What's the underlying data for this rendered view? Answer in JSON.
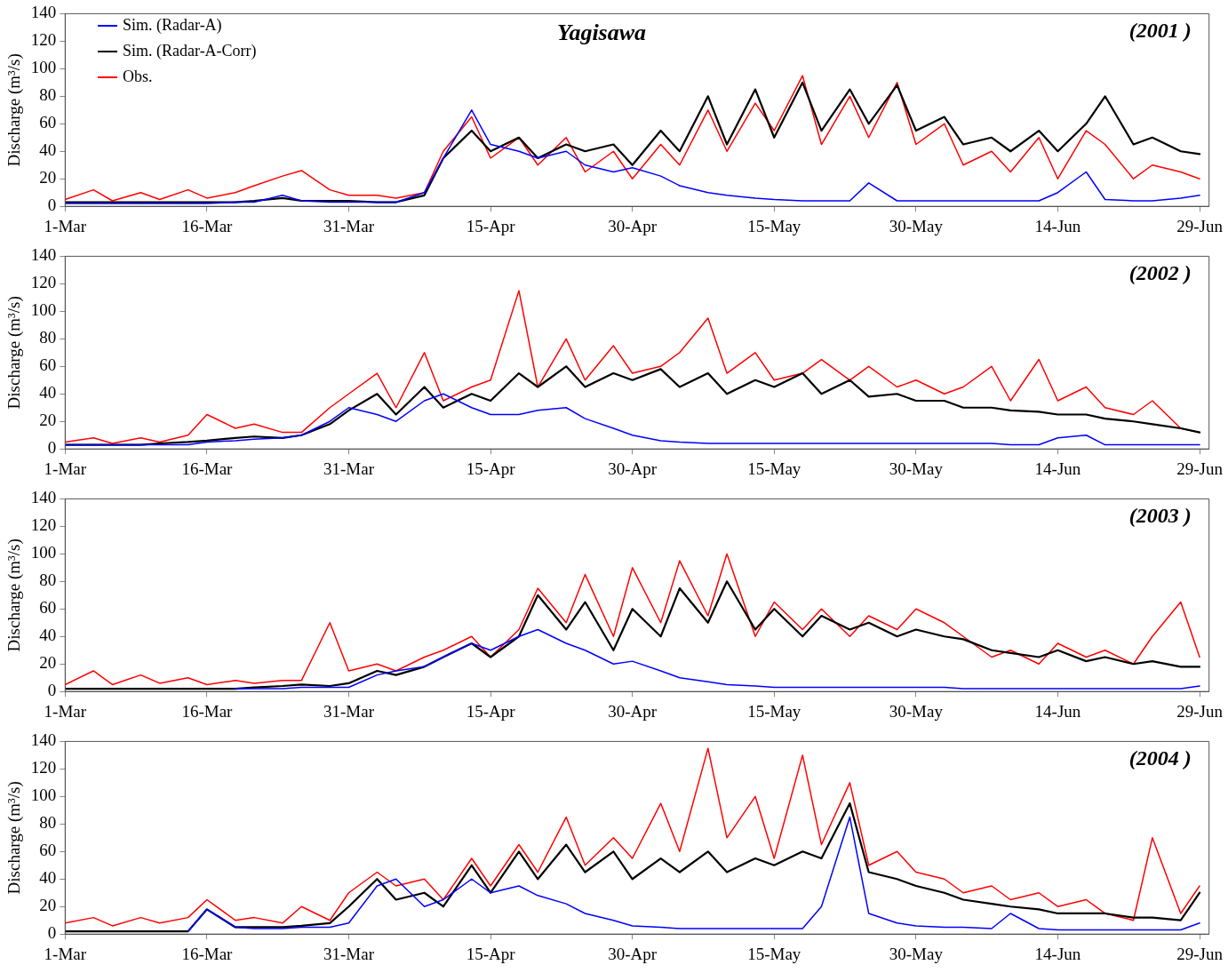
{
  "chart_data": [
    {
      "type": "line",
      "title": "Yagisawa",
      "annotations": [
        "(2001 )"
      ],
      "ylabel": "Discharge (m³/s)",
      "legend": "top left",
      "marker": "none",
      "x": [
        "--03-01",
        "--03-04",
        "--03-06",
        "--03-09",
        "--03-11",
        "--03-14",
        "--03-16",
        "--03-19",
        "--03-21",
        "--03-24",
        "--03-26",
        "--03-29",
        "--03-31",
        "--04-03",
        "--04-05",
        "--04-08",
        "--04-10",
        "--04-13",
        "--04-15",
        "--04-18",
        "--04-20",
        "--04-23",
        "--04-25",
        "--04-28",
        "--04-30",
        "--05-03",
        "--05-05",
        "--05-08",
        "--05-10",
        "--05-13",
        "--05-15",
        "--05-18",
        "--05-20",
        "--05-23",
        "--05-25",
        "--05-28",
        "--05-30",
        "--06-02",
        "--06-04",
        "--06-07",
        "--06-09",
        "--06-12",
        "--06-14",
        "--06-17",
        "--06-19",
        "--06-22",
        "--06-24",
        "--06-27",
        "--06-29"
      ],
      "xlim": [
        "--03-01",
        "--06-30"
      ],
      "xticks": [
        {
          "value": "--03-01",
          "label": "1-Mar"
        },
        {
          "value": "--03-16",
          "label": "16-Mar"
        },
        {
          "value": "--03-31",
          "label": "31-Mar"
        },
        {
          "value": "--04-15",
          "label": "15-Apr"
        },
        {
          "value": "--04-30",
          "label": "30-Apr"
        },
        {
          "value": "--05-15",
          "label": "15-May"
        },
        {
          "value": "--05-30",
          "label": "30-May"
        },
        {
          "value": "--06-14",
          "label": "14-Jun"
        },
        {
          "value": "--06-29",
          "label": "29-Jun"
        }
      ],
      "ylim": [
        0,
        140
      ],
      "yticks": [
        0,
        20,
        40,
        60,
        80,
        100,
        120,
        140
      ],
      "series": [
        {
          "name": "Sim. (Radar-A)",
          "color": "#0000ff",
          "values": [
            2,
            2,
            2,
            2,
            2,
            2,
            2,
            3,
            3,
            8,
            4,
            3,
            3,
            3,
            3,
            10,
            35,
            70,
            45,
            40,
            35,
            40,
            30,
            25,
            28,
            22,
            15,
            10,
            8,
            6,
            5,
            4,
            4,
            4,
            17,
            4,
            4,
            4,
            4,
            4,
            4,
            4,
            10,
            25,
            5,
            4,
            4,
            6,
            8
          ]
        },
        {
          "name": "Sim. (Radar-A-Corr)",
          "color": "#000000",
          "values": [
            3,
            3,
            3,
            3,
            3,
            3,
            3,
            3,
            4,
            6,
            4,
            4,
            4,
            3,
            3,
            8,
            35,
            55,
            40,
            50,
            35,
            45,
            40,
            45,
            30,
            55,
            40,
            80,
            45,
            85,
            50,
            90,
            55,
            85,
            60,
            88,
            55,
            65,
            45,
            50,
            40,
            55,
            40,
            60,
            80,
            45,
            50,
            40,
            38
          ]
        },
        {
          "name": "Obs.",
          "color": "#ff0000",
          "values": [
            5,
            12,
            4,
            10,
            5,
            12,
            6,
            10,
            15,
            22,
            26,
            12,
            8,
            8,
            6,
            10,
            40,
            65,
            35,
            50,
            30,
            50,
            25,
            40,
            20,
            45,
            30,
            70,
            40,
            75,
            55,
            95,
            45,
            80,
            50,
            90,
            45,
            60,
            30,
            40,
            25,
            50,
            20,
            55,
            45,
            20,
            30,
            25,
            20
          ]
        }
      ]
    },
    {
      "type": "line",
      "annotations": [
        "(2002 )"
      ],
      "ylabel": "Discharge (m³/s)",
      "marker": "none",
      "x": [
        "--03-01",
        "--03-04",
        "--03-06",
        "--03-09",
        "--03-11",
        "--03-14",
        "--03-16",
        "--03-19",
        "--03-21",
        "--03-24",
        "--03-26",
        "--03-29",
        "--03-31",
        "--04-03",
        "--04-05",
        "--04-08",
        "--04-10",
        "--04-13",
        "--04-15",
        "--04-18",
        "--04-20",
        "--04-23",
        "--04-25",
        "--04-28",
        "--04-30",
        "--05-03",
        "--05-05",
        "--05-08",
        "--05-10",
        "--05-13",
        "--05-15",
        "--05-18",
        "--05-20",
        "--05-23",
        "--05-25",
        "--05-28",
        "--05-30",
        "--06-02",
        "--06-04",
        "--06-07",
        "--06-09",
        "--06-12",
        "--06-14",
        "--06-17",
        "--06-19",
        "--06-22",
        "--06-24",
        "--06-27",
        "--06-29"
      ],
      "xlim": [
        "--03-01",
        "--06-30"
      ],
      "xticks": [
        {
          "value": "--03-01",
          "label": "1-Mar"
        },
        {
          "value": "--03-16",
          "label": "16-Mar"
        },
        {
          "value": "--03-31",
          "label": "31-Mar"
        },
        {
          "value": "--04-15",
          "label": "15-Apr"
        },
        {
          "value": "--04-30",
          "label": "30-Apr"
        },
        {
          "value": "--05-15",
          "label": "15-May"
        },
        {
          "value": "--05-30",
          "label": "30-May"
        },
        {
          "value": "--06-14",
          "label": "14-Jun"
        },
        {
          "value": "--06-29",
          "label": "29-Jun"
        }
      ],
      "ylim": [
        0,
        140
      ],
      "yticks": [
        0,
        20,
        40,
        60,
        80,
        100,
        120,
        140
      ],
      "series": [
        {
          "color": "#0000ff",
          "values": [
            3,
            3,
            3,
            3,
            3,
            3,
            5,
            6,
            7,
            8,
            10,
            20,
            30,
            25,
            20,
            35,
            40,
            30,
            25,
            25,
            28,
            30,
            22,
            15,
            10,
            6,
            5,
            4,
            4,
            4,
            4,
            4,
            4,
            4,
            4,
            4,
            4,
            4,
            4,
            4,
            3,
            3,
            8,
            10,
            3,
            3,
            3,
            3,
            3
          ]
        },
        {
          "color": "#000000",
          "values": [
            3,
            3,
            3,
            3,
            4,
            5,
            6,
            8,
            9,
            8,
            10,
            18,
            28,
            40,
            25,
            45,
            30,
            40,
            35,
            55,
            45,
            60,
            45,
            55,
            50,
            58,
            45,
            55,
            40,
            50,
            45,
            55,
            40,
            50,
            38,
            40,
            35,
            35,
            30,
            30,
            28,
            27,
            25,
            25,
            22,
            20,
            18,
            15,
            12
          ]
        },
        {
          "color": "#ff0000",
          "values": [
            5,
            8,
            4,
            8,
            5,
            10,
            25,
            15,
            18,
            12,
            12,
            30,
            40,
            55,
            30,
            70,
            35,
            45,
            50,
            115,
            45,
            80,
            50,
            75,
            55,
            60,
            70,
            95,
            55,
            70,
            50,
            55,
            65,
            50,
            60,
            45,
            50,
            40,
            45,
            60,
            35,
            65,
            35,
            45,
            30,
            25,
            35,
            15,
            12
          ]
        }
      ]
    },
    {
      "type": "line",
      "annotations": [
        "(2003 )"
      ],
      "ylabel": "Discharge (m³/s)",
      "marker": "none",
      "x": [
        "--03-01",
        "--03-04",
        "--03-06",
        "--03-09",
        "--03-11",
        "--03-14",
        "--03-16",
        "--03-19",
        "--03-21",
        "--03-24",
        "--03-26",
        "--03-29",
        "--03-31",
        "--04-03",
        "--04-05",
        "--04-08",
        "--04-10",
        "--04-13",
        "--04-15",
        "--04-18",
        "--04-20",
        "--04-23",
        "--04-25",
        "--04-28",
        "--04-30",
        "--05-03",
        "--05-05",
        "--05-08",
        "--05-10",
        "--05-13",
        "--05-15",
        "--05-18",
        "--05-20",
        "--05-23",
        "--05-25",
        "--05-28",
        "--05-30",
        "--06-02",
        "--06-04",
        "--06-07",
        "--06-09",
        "--06-12",
        "--06-14",
        "--06-17",
        "--06-19",
        "--06-22",
        "--06-24",
        "--06-27",
        "--06-29"
      ],
      "xlim": [
        "--03-01",
        "--06-30"
      ],
      "xticks": [
        {
          "value": "--03-01",
          "label": "1-Mar"
        },
        {
          "value": "--03-16",
          "label": "16-Mar"
        },
        {
          "value": "--03-31",
          "label": "31-Mar"
        },
        {
          "value": "--04-15",
          "label": "15-Apr"
        },
        {
          "value": "--04-30",
          "label": "30-Apr"
        },
        {
          "value": "--05-15",
          "label": "15-May"
        },
        {
          "value": "--05-30",
          "label": "30-May"
        },
        {
          "value": "--06-14",
          "label": "14-Jun"
        },
        {
          "value": "--06-29",
          "label": "29-Jun"
        }
      ],
      "ylim": [
        0,
        140
      ],
      "yticks": [
        0,
        20,
        40,
        60,
        80,
        100,
        120,
        140
      ],
      "series": [
        {
          "color": "#0000ff",
          "values": [
            null,
            null,
            null,
            null,
            null,
            null,
            null,
            2,
            2,
            2,
            3,
            3,
            3,
            12,
            15,
            18,
            25,
            35,
            30,
            40,
            45,
            35,
            30,
            20,
            22,
            15,
            10,
            7,
            5,
            4,
            3,
            3,
            3,
            3,
            3,
            3,
            3,
            3,
            2,
            2,
            2,
            2,
            2,
            2,
            2,
            2,
            2,
            2,
            4
          ]
        },
        {
          "color": "#000000",
          "values": [
            2,
            2,
            2,
            2,
            2,
            2,
            2,
            2,
            3,
            4,
            5,
            4,
            6,
            15,
            12,
            18,
            25,
            35,
            25,
            40,
            70,
            45,
            65,
            30,
            60,
            40,
            75,
            50,
            80,
            45,
            60,
            40,
            55,
            45,
            50,
            40,
            45,
            40,
            38,
            30,
            28,
            25,
            30,
            22,
            25,
            20,
            22,
            18,
            18
          ]
        },
        {
          "color": "#ff0000",
          "values": [
            5,
            15,
            5,
            12,
            6,
            10,
            5,
            8,
            6,
            8,
            8,
            50,
            15,
            20,
            15,
            25,
            30,
            40,
            25,
            45,
            75,
            50,
            85,
            40,
            90,
            50,
            95,
            55,
            100,
            40,
            65,
            45,
            60,
            40,
            55,
            45,
            60,
            50,
            40,
            25,
            30,
            20,
            35,
            25,
            30,
            20,
            40,
            65,
            25
          ]
        }
      ]
    },
    {
      "type": "line",
      "annotations": [
        "(2004 )"
      ],
      "ylabel": "Discharge (m³/s)",
      "marker": "none",
      "x": [
        "--03-01",
        "--03-04",
        "--03-06",
        "--03-09",
        "--03-11",
        "--03-14",
        "--03-16",
        "--03-19",
        "--03-21",
        "--03-24",
        "--03-26",
        "--03-29",
        "--03-31",
        "--04-03",
        "--04-05",
        "--04-08",
        "--04-10",
        "--04-13",
        "--04-15",
        "--04-18",
        "--04-20",
        "--04-23",
        "--04-25",
        "--04-28",
        "--04-30",
        "--05-03",
        "--05-05",
        "--05-08",
        "--05-10",
        "--05-13",
        "--05-15",
        "--05-18",
        "--05-20",
        "--05-23",
        "--05-25",
        "--05-28",
        "--05-30",
        "--06-02",
        "--06-04",
        "--06-07",
        "--06-09",
        "--06-12",
        "--06-14",
        "--06-17",
        "--06-19",
        "--06-22",
        "--06-24",
        "--06-27",
        "--06-29"
      ],
      "xlim": [
        "--03-01",
        "--06-30"
      ],
      "xticks": [
        {
          "value": "--03-01",
          "label": "1-Mar"
        },
        {
          "value": "--03-16",
          "label": "16-Mar"
        },
        {
          "value": "--03-31",
          "label": "31-Mar"
        },
        {
          "value": "--04-15",
          "label": "15-Apr"
        },
        {
          "value": "--04-30",
          "label": "30-Apr"
        },
        {
          "value": "--05-15",
          "label": "15-May"
        },
        {
          "value": "--05-30",
          "label": "30-May"
        },
        {
          "value": "--06-14",
          "label": "14-Jun"
        },
        {
          "value": "--06-29",
          "label": "29-Jun"
        }
      ],
      "ylim": [
        0,
        140
      ],
      "yticks": [
        0,
        20,
        40,
        60,
        80,
        100,
        120,
        140
      ],
      "series": [
        {
          "color": "#0000ff",
          "values": [
            null,
            null,
            null,
            null,
            null,
            2,
            18,
            5,
            4,
            4,
            5,
            5,
            8,
            35,
            40,
            20,
            25,
            40,
            30,
            35,
            28,
            22,
            15,
            10,
            6,
            5,
            4,
            4,
            4,
            4,
            4,
            4,
            20,
            85,
            15,
            8,
            6,
            5,
            5,
            4,
            15,
            4,
            3,
            3,
            3,
            3,
            3,
            3,
            8
          ]
        },
        {
          "color": "#000000",
          "values": [
            2,
            2,
            2,
            2,
            2,
            2,
            18,
            5,
            5,
            5,
            6,
            8,
            20,
            40,
            25,
            30,
            20,
            50,
            30,
            60,
            40,
            65,
            45,
            60,
            40,
            55,
            45,
            60,
            45,
            55,
            50,
            60,
            55,
            95,
            45,
            40,
            35,
            30,
            25,
            22,
            20,
            18,
            15,
            15,
            15,
            12,
            12,
            10,
            30
          ]
        },
        {
          "color": "#ff0000",
          "values": [
            8,
            12,
            6,
            12,
            8,
            12,
            25,
            10,
            12,
            8,
            20,
            10,
            30,
            45,
            35,
            40,
            25,
            55,
            35,
            65,
            45,
            85,
            50,
            70,
            55,
            95,
            60,
            135,
            70,
            100,
            55,
            130,
            65,
            110,
            50,
            60,
            45,
            40,
            30,
            35,
            25,
            30,
            20,
            25,
            15,
            10,
            70,
            15,
            35
          ]
        }
      ]
    }
  ]
}
